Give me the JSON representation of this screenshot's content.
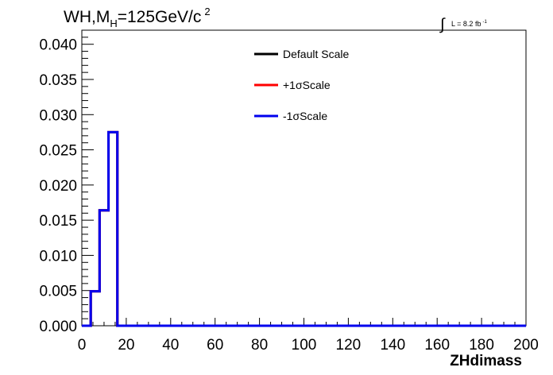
{
  "chart_data": {
    "type": "line",
    "title_main": "WH,M",
    "title_sub": "H",
    "title_rest": "=125GeV/c",
    "title_sup": "2",
    "lumi_label": "L = 8.2 fb",
    "lumi_sup": "-1",
    "xlabel": "ZHdimass",
    "ylabel": "",
    "xlim": [
      0,
      200
    ],
    "ylim": [
      0,
      0.042
    ],
    "x_ticks": [
      "0",
      "20",
      "40",
      "60",
      "80",
      "100",
      "120",
      "140",
      "160",
      "180",
      "200"
    ],
    "y_ticks": [
      "0.000",
      "0.005",
      "0.010",
      "0.015",
      "0.020",
      "0.025",
      "0.030",
      "0.035",
      "0.040"
    ],
    "bin_edges": [
      0,
      4,
      8,
      12,
      16,
      200
    ],
    "series": [
      {
        "name": "Default Scale",
        "color": "#000000",
        "values": [
          0.0,
          0.0049,
          0.0164,
          0.0275,
          0.0
        ]
      },
      {
        "name": "+1σScale",
        "color": "#ff0000",
        "values": [
          0.0,
          0.0049,
          0.0164,
          0.0275,
          0.0
        ]
      },
      {
        "name": "-1σScale",
        "color": "#0000ee",
        "values": [
          0.0,
          0.0049,
          0.0164,
          0.0275,
          0.0
        ]
      }
    ],
    "grid": false,
    "legend_position": "top-center"
  }
}
